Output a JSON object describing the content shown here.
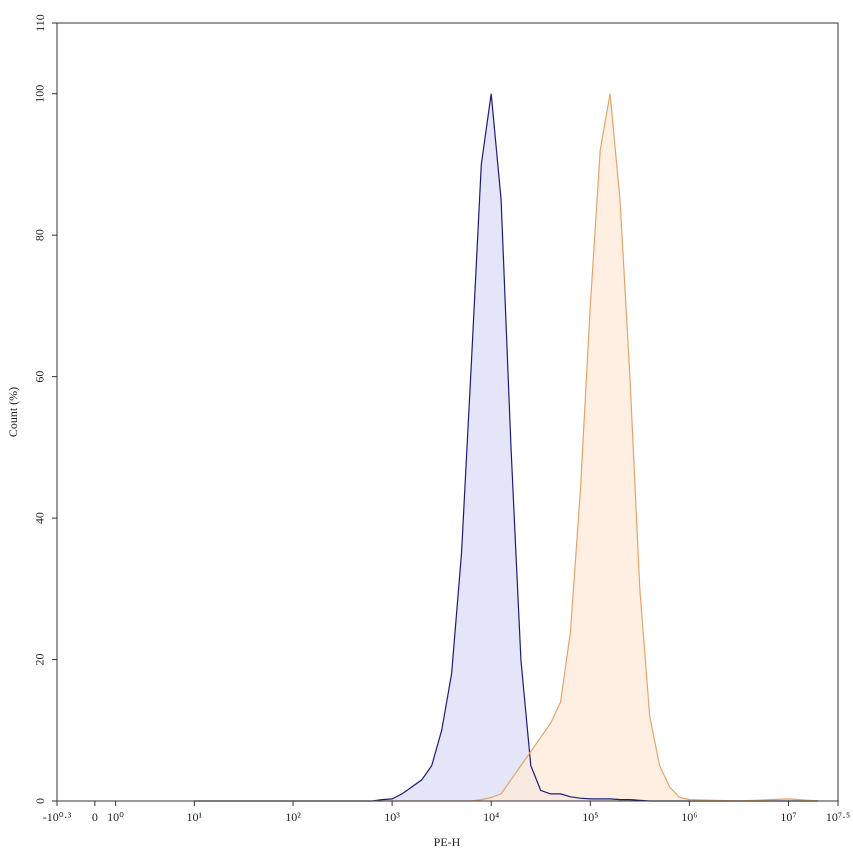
{
  "chart_data": {
    "type": "histogram-overlay",
    "x_label": "PE-H",
    "y_label": "Count (%)",
    "xscale": "biexponential",
    "xlim": [
      -1.995,
      31622777
    ],
    "ylim": [
      0,
      110
    ],
    "xticks": [
      {
        "value": -1.995,
        "label": "-10⁰·³"
      },
      0,
      {
        "value": 1,
        "label": "10⁰"
      },
      {
        "value": 10,
        "label": "10¹"
      },
      {
        "value": 100,
        "label": "10²"
      },
      {
        "value": 1000,
        "label": "10³"
      },
      {
        "value": 10000,
        "label": "10⁴"
      },
      {
        "value": 100000,
        "label": "10⁵"
      },
      {
        "value": 1000000,
        "label": "10⁶"
      },
      {
        "value": 10000000,
        "label": "10⁷"
      },
      {
        "value": 31622777,
        "label": "10⁷·⁵"
      }
    ],
    "yticks": [
      0,
      20,
      40,
      60,
      80,
      100,
      110
    ],
    "x": [
      10,
      100,
      316,
      398,
      501,
      631,
      794,
      1000,
      1259,
      1585,
      1995,
      2512,
      3162,
      3981,
      5012,
      6310,
      7943,
      10000,
      12589,
      15849,
      19953,
      25119,
      31623,
      39811,
      50119,
      63096,
      79433,
      100000,
      125893,
      158489,
      199526,
      251189,
      316228,
      398107,
      501187,
      630957,
      794328,
      1000000,
      3162278,
      10000000,
      19952623
    ],
    "series": [
      {
        "color": "#1c1c78",
        "fill": "#dcdcf7",
        "values": [
          0,
          0,
          0,
          0,
          0,
          0,
          0.2,
          0.3,
          1,
          2,
          3,
          5,
          10,
          18,
          35,
          62,
          90,
          100,
          85,
          50,
          20,
          5,
          1.5,
          1,
          1,
          0.6,
          0.4,
          0.3,
          0.3,
          0.3,
          0.2,
          0.2,
          0.1,
          0,
          0,
          0,
          0,
          0,
          0,
          0,
          0
        ]
      },
      {
        "color": "#e3a46c",
        "fill": "#fde9d8",
        "values": [
          0,
          0,
          0,
          0,
          0,
          0,
          0,
          0,
          0,
          0,
          0,
          0,
          0,
          0,
          0,
          0,
          0.2,
          0.5,
          1,
          3,
          5,
          7,
          9,
          11,
          14,
          24,
          44,
          70,
          92,
          100,
          85,
          60,
          30,
          12,
          5,
          2,
          0.5,
          0.2,
          0,
          0.3,
          0
        ]
      }
    ]
  }
}
